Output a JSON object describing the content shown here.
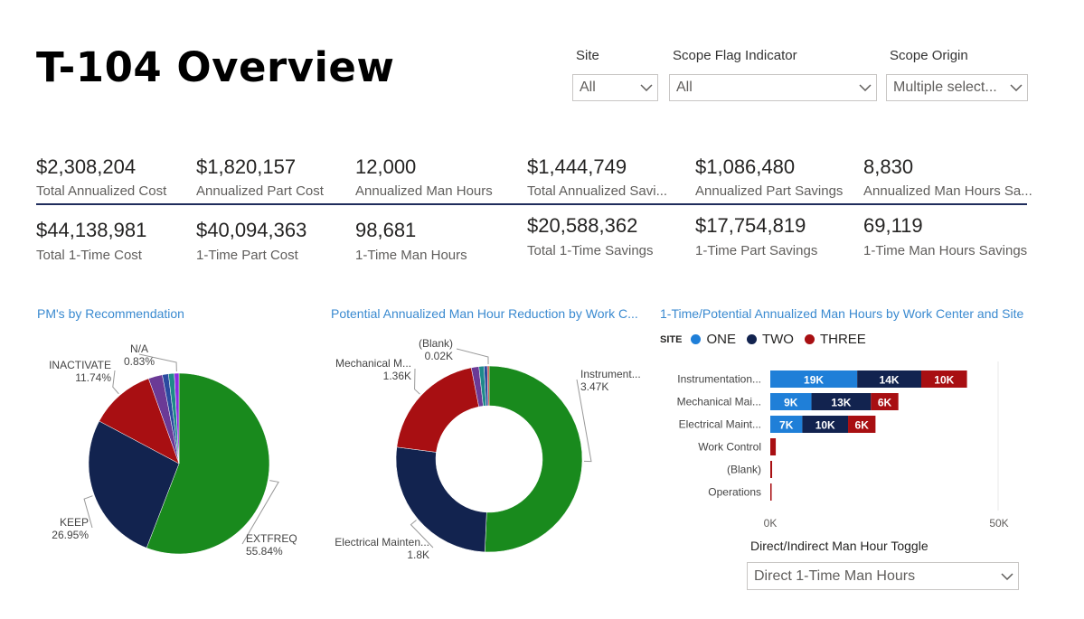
{
  "page": {
    "title": "T-104 Overview"
  },
  "filters": [
    {
      "label": "Site",
      "value": "All"
    },
    {
      "label": "Scope Flag Indicator",
      "value": "All"
    },
    {
      "label": "Scope Origin",
      "value": "Multiple select..."
    }
  ],
  "kpis_row1": [
    {
      "value": "$2,308,204",
      "label": "Total Annualized Cost"
    },
    {
      "value": "$1,820,157",
      "label": "Annualized Part Cost"
    },
    {
      "value": "12,000",
      "label": "Annualized Man Hours"
    },
    {
      "value": "$1,444,749",
      "label": "Total Annualized Savi..."
    },
    {
      "value": "$1,086,480",
      "label": "Annualized Part Savings"
    },
    {
      "value": "8,830",
      "label": "Annualized Man Hours Sa..."
    }
  ],
  "kpis_row2": [
    {
      "value": "$44,138,981",
      "label": "Total 1-Time Cost"
    },
    {
      "value": "$40,094,363",
      "label": "1-Time Part Cost"
    },
    {
      "value": "98,681",
      "label": "1-Time Man Hours"
    },
    {
      "value": "$20,588,362",
      "label": "Total 1-Time Savings"
    },
    {
      "value": "$17,754,819",
      "label": "1-Time Part Savings"
    },
    {
      "value": "69,119",
      "label": "1-Time Man Hours Savings"
    }
  ],
  "toggle": {
    "label": "Direct/Indirect Man Hour Toggle",
    "value": "Direct 1-Time Man Hours"
  },
  "colors": {
    "green": "#198a1d",
    "navy": "#12234f",
    "red": "#a80f12",
    "blue": "#1f7fd8",
    "purple": "#6b3a96",
    "teal": "#1f8a8a",
    "accent_title": "#3a8ad0"
  },
  "icons": {
    "dropdown": "chevron-down-icon"
  },
  "chart_data": [
    {
      "type": "pie",
      "title": "PM's by Recommendation",
      "slices": [
        {
          "label": "EXTFREQ",
          "percent": 55.84,
          "percent_label": "55.84%",
          "color": "#198a1d"
        },
        {
          "label": "KEEP",
          "percent": 26.95,
          "percent_label": "26.95%",
          "color": "#12234f"
        },
        {
          "label": "INACTIVATE",
          "percent": 11.74,
          "percent_label": "11.74%",
          "color": "#a80f12"
        },
        {
          "label": "",
          "percent": 2.5,
          "percent_label": "",
          "color": "#6b3a96"
        },
        {
          "label": "",
          "percent": 1.1,
          "percent_label": "",
          "color": "#2b4aa0"
        },
        {
          "label": "",
          "percent": 1.04,
          "percent_label": "",
          "color": "#1f8a8a"
        },
        {
          "label": "N/A",
          "percent": 0.83,
          "percent_label": "0.83%",
          "color": "#8a2be2"
        }
      ]
    },
    {
      "type": "pie",
      "title": "Potential Annualized Man Hour Reduction by Work C...",
      "slices": [
        {
          "label": "Instrument...",
          "value": 3470,
          "value_label": "3.47K",
          "color": "#198a1d"
        },
        {
          "label": "Electrical Mainten...",
          "value": 1800,
          "value_label": "1.8K",
          "color": "#12234f"
        },
        {
          "label": "Mechanical M...",
          "value": 1360,
          "value_label": "1.36K",
          "color": "#a80f12"
        },
        {
          "label": "",
          "value": 90,
          "value_label": "",
          "color": "#6b3a96"
        },
        {
          "label": "",
          "value": 60,
          "value_label": "",
          "color": "#1f8a8a"
        },
        {
          "label": "",
          "value": 40,
          "value_label": "",
          "color": "#2b4aa0"
        },
        {
          "label": "(Blank)",
          "value": 20,
          "value_label": "0.02K",
          "color": "#c0392b"
        }
      ]
    },
    {
      "type": "bar",
      "title": "1-Time/Potential Annualized Man Hours by Work Center and Site",
      "legend_title": "SITE",
      "categories": [
        "Instrumentation...",
        "Mechanical Mai...",
        "Electrical Maint...",
        "Work Control",
        "(Blank)",
        "Operations"
      ],
      "series": [
        {
          "name": "ONE",
          "color": "#1f7fd8",
          "values": [
            19000,
            9000,
            7000,
            0,
            0,
            0
          ],
          "labels": [
            "19K",
            "9K",
            "7K",
            "",
            "",
            ""
          ]
        },
        {
          "name": "TWO",
          "color": "#12234f",
          "values": [
            14000,
            13000,
            10000,
            0,
            0,
            0
          ],
          "labels": [
            "14K",
            "13K",
            "10K",
            "",
            "",
            ""
          ]
        },
        {
          "name": "THREE",
          "color": "#a80f12",
          "values": [
            10000,
            6000,
            6000,
            1200,
            400,
            300
          ],
          "labels": [
            "10K",
            "6K",
            "6K",
            "",
            "",
            ""
          ]
        }
      ],
      "xlim": [
        0,
        50000
      ],
      "xticks": [
        "0K",
        "50K"
      ],
      "orientation": "horizontal",
      "stacked": true
    }
  ]
}
